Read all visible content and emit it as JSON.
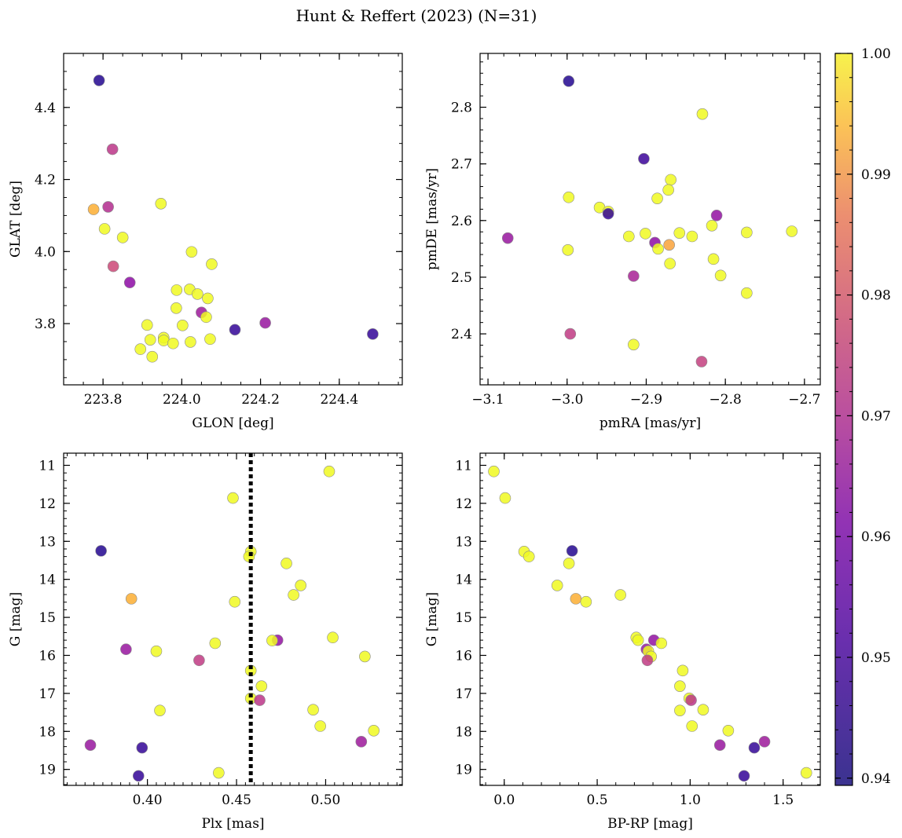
{
  "figure": {
    "title": "Hunt & Reffert (2023) (N=31)",
    "marker_edge_color": "#8c8c8c",
    "colormap": "plasma",
    "colorbar": {
      "vmin": 0.9394,
      "vmax": 1.0,
      "ticks": [
        0.94,
        0.95,
        0.96,
        0.97,
        0.98,
        0.99,
        1.0
      ],
      "tick_labels": [
        "0.94",
        "0.95",
        "0.96",
        "0.97",
        "0.98",
        "0.99",
        "1.00"
      ]
    }
  },
  "chart_data": [
    {
      "id": "sky",
      "type": "scatter",
      "xlabel": "GLON [deg]",
      "ylabel": "GLAT [deg]",
      "xlim": [
        223.7,
        224.56
      ],
      "ylim": [
        3.63,
        4.55
      ],
      "yinverted": false,
      "xticks": [
        223.8,
        224.0,
        224.2,
        224.4
      ],
      "xtick_labels": [
        "223.8",
        "224.0",
        "224.2",
        "224.4"
      ],
      "yticks": [
        3.8,
        4.0,
        4.2,
        4.4
      ],
      "ytick_labels": [
        "3.8",
        "4.0",
        "4.2",
        "4.4"
      ],
      "xminor": 0.05,
      "yminor": 0.05,
      "points": [
        {
          "x": 223.79,
          "y": 4.475,
          "c": 0.942
        },
        {
          "x": 223.824,
          "y": 4.284,
          "c": 0.966
        },
        {
          "x": 223.776,
          "y": 4.117,
          "c": 0.989
        },
        {
          "x": 223.813,
          "y": 4.124,
          "c": 0.964
        },
        {
          "x": 223.804,
          "y": 4.063,
          "c": 1.0
        },
        {
          "x": 223.85,
          "y": 4.039,
          "c": 1.0
        },
        {
          "x": 223.826,
          "y": 3.959,
          "c": 0.97
        },
        {
          "x": 223.868,
          "y": 3.914,
          "c": 0.957
        },
        {
          "x": 223.947,
          "y": 4.133,
          "c": 1.0
        },
        {
          "x": 224.025,
          "y": 3.999,
          "c": 1.0
        },
        {
          "x": 224.076,
          "y": 3.965,
          "c": 1.0
        },
        {
          "x": 223.987,
          "y": 3.893,
          "c": 1.0
        },
        {
          "x": 224.02,
          "y": 3.895,
          "c": 1.0
        },
        {
          "x": 224.04,
          "y": 3.882,
          "c": 1.0
        },
        {
          "x": 224.066,
          "y": 3.87,
          "c": 1.0
        },
        {
          "x": 223.986,
          "y": 3.843,
          "c": 1.0
        },
        {
          "x": 224.05,
          "y": 3.831,
          "c": 0.96
        },
        {
          "x": 224.062,
          "y": 3.818,
          "c": 1.0
        },
        {
          "x": 223.912,
          "y": 3.796,
          "c": 1.0
        },
        {
          "x": 224.002,
          "y": 3.795,
          "c": 1.0
        },
        {
          "x": 224.135,
          "y": 3.783,
          "c": 0.944
        },
        {
          "x": 224.212,
          "y": 3.802,
          "c": 0.959
        },
        {
          "x": 224.485,
          "y": 3.771,
          "c": 0.944
        },
        {
          "x": 223.954,
          "y": 3.761,
          "c": 1.0
        },
        {
          "x": 224.072,
          "y": 3.757,
          "c": 1.0
        },
        {
          "x": 223.92,
          "y": 3.755,
          "c": 1.0
        },
        {
          "x": 223.954,
          "y": 3.753,
          "c": 1.0
        },
        {
          "x": 224.022,
          "y": 3.749,
          "c": 1.0
        },
        {
          "x": 223.978,
          "y": 3.745,
          "c": 1.0
        },
        {
          "x": 223.895,
          "y": 3.729,
          "c": 1.0
        },
        {
          "x": 223.925,
          "y": 3.708,
          "c": 1.0
        }
      ]
    },
    {
      "id": "pm",
      "type": "scatter",
      "xlabel": "pmRA [mas/yr]",
      "ylabel": "pmDE [mas/yr]",
      "xlim": [
        -3.11,
        -2.68
      ],
      "ylim": [
        2.31,
        2.895
      ],
      "yinverted": false,
      "xticks": [
        -3.1,
        -3.0,
        -2.9,
        -2.8,
        -2.7
      ],
      "xtick_labels": [
        "−3.1",
        "−3.0",
        "−2.9",
        "−2.8",
        "−2.7"
      ],
      "yticks": [
        2.4,
        2.5,
        2.6,
        2.7,
        2.8
      ],
      "ytick_labels": [
        "2.4",
        "2.5",
        "2.6",
        "2.7",
        "2.8"
      ],
      "xminor": 0.02,
      "yminor": 0.02,
      "points": [
        {
          "x": -2.998,
          "y": 2.846,
          "c": 0.942
        },
        {
          "x": -2.829,
          "y": 2.788,
          "c": 1.0
        },
        {
          "x": -2.903,
          "y": 2.709,
          "c": 0.945
        },
        {
          "x": -2.869,
          "y": 2.672,
          "c": 1.0
        },
        {
          "x": -2.872,
          "y": 2.654,
          "c": 1.0
        },
        {
          "x": -2.998,
          "y": 2.641,
          "c": 1.0
        },
        {
          "x": -2.886,
          "y": 2.639,
          "c": 1.0
        },
        {
          "x": -2.959,
          "y": 2.623,
          "c": 1.0
        },
        {
          "x": -2.948,
          "y": 2.616,
          "c": 1.0
        },
        {
          "x": -2.948,
          "y": 2.612,
          "c": 0.944
        },
        {
          "x": -2.811,
          "y": 2.609,
          "c": 0.958
        },
        {
          "x": -2.817,
          "y": 2.591,
          "c": 1.0
        },
        {
          "x": -2.716,
          "y": 2.581,
          "c": 1.0
        },
        {
          "x": -2.773,
          "y": 2.579,
          "c": 1.0
        },
        {
          "x": -2.858,
          "y": 2.578,
          "c": 1.0
        },
        {
          "x": -2.901,
          "y": 2.577,
          "c": 1.0
        },
        {
          "x": -2.922,
          "y": 2.572,
          "c": 1.0
        },
        {
          "x": -2.842,
          "y": 2.572,
          "c": 1.0
        },
        {
          "x": -3.075,
          "y": 2.569,
          "c": 0.959
        },
        {
          "x": -2.889,
          "y": 2.561,
          "c": 0.957
        },
        {
          "x": -2.871,
          "y": 2.557,
          "c": 0.987
        },
        {
          "x": -2.885,
          "y": 2.55,
          "c": 1.0
        },
        {
          "x": -2.999,
          "y": 2.548,
          "c": 1.0
        },
        {
          "x": -2.815,
          "y": 2.532,
          "c": 1.0
        },
        {
          "x": -2.87,
          "y": 2.524,
          "c": 1.0
        },
        {
          "x": -2.806,
          "y": 2.503,
          "c": 1.0
        },
        {
          "x": -2.916,
          "y": 2.502,
          "c": 0.962
        },
        {
          "x": -2.773,
          "y": 2.472,
          "c": 1.0
        },
        {
          "x": -2.996,
          "y": 2.4,
          "c": 0.967
        },
        {
          "x": -2.916,
          "y": 2.381,
          "c": 1.0
        },
        {
          "x": -2.83,
          "y": 2.351,
          "c": 0.968
        }
      ]
    },
    {
      "id": "plx",
      "type": "scatter",
      "xlabel": "Plx [mas]",
      "ylabel": "G [mag]",
      "xlim": [
        0.353,
        0.543
      ],
      "ylim": [
        10.68,
        19.42
      ],
      "yinverted": true,
      "xticks": [
        0.4,
        0.45,
        0.5
      ],
      "xtick_labels": [
        "0.40",
        "0.45",
        "0.50"
      ],
      "yticks": [
        11,
        12,
        13,
        14,
        15,
        16,
        17,
        18,
        19
      ],
      "ytick_labels": [
        "11",
        "12",
        "13",
        "14",
        "15",
        "16",
        "17",
        "18",
        "19"
      ],
      "xminor": 0.005,
      "yminor": 0.2,
      "vline": {
        "x": 0.458,
        "color": "#000000",
        "style": "dotted"
      },
      "points": [
        {
          "x": 0.502,
          "y": 11.16,
          "c": 1.0
        },
        {
          "x": 0.448,
          "y": 11.86,
          "c": 1.0
        },
        {
          "x": 0.374,
          "y": 13.25,
          "c": 0.942
        },
        {
          "x": 0.458,
          "y": 13.27,
          "c": 1.0
        },
        {
          "x": 0.457,
          "y": 13.4,
          "c": 1.0
        },
        {
          "x": 0.478,
          "y": 13.58,
          "c": 1.0
        },
        {
          "x": 0.486,
          "y": 14.16,
          "c": 1.0
        },
        {
          "x": 0.482,
          "y": 14.41,
          "c": 1.0
        },
        {
          "x": 0.391,
          "y": 14.51,
          "c": 0.989
        },
        {
          "x": 0.449,
          "y": 14.59,
          "c": 1.0
        },
        {
          "x": 0.504,
          "y": 15.53,
          "c": 1.0
        },
        {
          "x": 0.473,
          "y": 15.6,
          "c": 0.958
        },
        {
          "x": 0.47,
          "y": 15.61,
          "c": 1.0
        },
        {
          "x": 0.438,
          "y": 15.68,
          "c": 1.0
        },
        {
          "x": 0.388,
          "y": 15.84,
          "c": 0.959
        },
        {
          "x": 0.405,
          "y": 15.89,
          "c": 1.0
        },
        {
          "x": 0.522,
          "y": 16.03,
          "c": 1.0
        },
        {
          "x": 0.429,
          "y": 16.13,
          "c": 0.967
        },
        {
          "x": 0.458,
          "y": 16.4,
          "c": 1.0
        },
        {
          "x": 0.464,
          "y": 16.81,
          "c": 1.0
        },
        {
          "x": 0.458,
          "y": 17.13,
          "c": 1.0
        },
        {
          "x": 0.463,
          "y": 17.18,
          "c": 0.966
        },
        {
          "x": 0.407,
          "y": 17.45,
          "c": 1.0
        },
        {
          "x": 0.493,
          "y": 17.43,
          "c": 1.0
        },
        {
          "x": 0.497,
          "y": 17.86,
          "c": 1.0
        },
        {
          "x": 0.527,
          "y": 17.98,
          "c": 1.0
        },
        {
          "x": 0.52,
          "y": 18.27,
          "c": 0.96
        },
        {
          "x": 0.368,
          "y": 18.36,
          "c": 0.959
        },
        {
          "x": 0.397,
          "y": 18.43,
          "c": 0.944
        },
        {
          "x": 0.44,
          "y": 19.09,
          "c": 1.0
        },
        {
          "x": 0.395,
          "y": 19.17,
          "c": 0.944
        }
      ]
    },
    {
      "id": "cmd",
      "type": "scatter",
      "xlabel": "BP-RP [mag]",
      "ylabel": "G [mag]",
      "xlim": [
        -0.13,
        1.7
      ],
      "ylim": [
        10.68,
        19.42
      ],
      "yinverted": true,
      "xticks": [
        0.0,
        0.5,
        1.0,
        1.5
      ],
      "xtick_labels": [
        "0.0",
        "0.5",
        "1.0",
        "1.5"
      ],
      "yticks": [
        11,
        12,
        13,
        14,
        15,
        16,
        17,
        18,
        19
      ],
      "ytick_labels": [
        "11",
        "12",
        "13",
        "14",
        "15",
        "16",
        "17",
        "18",
        "19"
      ],
      "xminor": 0.1,
      "yminor": 0.2,
      "points": [
        {
          "x": -0.056,
          "y": 11.16,
          "c": 1.0
        },
        {
          "x": 0.005,
          "y": 11.86,
          "c": 1.0
        },
        {
          "x": 0.107,
          "y": 13.27,
          "c": 1.0
        },
        {
          "x": 0.133,
          "y": 13.4,
          "c": 1.0
        },
        {
          "x": 0.365,
          "y": 13.25,
          "c": 0.942
        },
        {
          "x": 0.348,
          "y": 13.58,
          "c": 1.0
        },
        {
          "x": 0.285,
          "y": 14.16,
          "c": 1.0
        },
        {
          "x": 0.385,
          "y": 14.51,
          "c": 0.989
        },
        {
          "x": 0.44,
          "y": 14.59,
          "c": 1.0
        },
        {
          "x": 0.625,
          "y": 14.41,
          "c": 1.0
        },
        {
          "x": 0.71,
          "y": 15.53,
          "c": 1.0
        },
        {
          "x": 0.72,
          "y": 15.6,
          "c": 1.0
        },
        {
          "x": 0.805,
          "y": 15.6,
          "c": 0.958
        },
        {
          "x": 0.845,
          "y": 15.68,
          "c": 1.0
        },
        {
          "x": 0.765,
          "y": 15.84,
          "c": 0.959
        },
        {
          "x": 0.775,
          "y": 15.89,
          "c": 1.0
        },
        {
          "x": 0.79,
          "y": 16.03,
          "c": 1.0
        },
        {
          "x": 0.77,
          "y": 16.13,
          "c": 0.967
        },
        {
          "x": 0.96,
          "y": 16.4,
          "c": 1.0
        },
        {
          "x": 0.945,
          "y": 16.81,
          "c": 1.0
        },
        {
          "x": 0.995,
          "y": 17.13,
          "c": 1.0
        },
        {
          "x": 1.005,
          "y": 17.18,
          "c": 0.966
        },
        {
          "x": 0.945,
          "y": 17.45,
          "c": 1.0
        },
        {
          "x": 1.07,
          "y": 17.43,
          "c": 1.0
        },
        {
          "x": 1.01,
          "y": 17.86,
          "c": 1.0
        },
        {
          "x": 1.205,
          "y": 17.98,
          "c": 1.0
        },
        {
          "x": 1.4,
          "y": 18.27,
          "c": 0.96
        },
        {
          "x": 1.16,
          "y": 18.36,
          "c": 0.959
        },
        {
          "x": 1.345,
          "y": 18.43,
          "c": 0.944
        },
        {
          "x": 1.625,
          "y": 19.09,
          "c": 1.0
        },
        {
          "x": 1.29,
          "y": 19.17,
          "c": 0.944
        }
      ]
    }
  ]
}
